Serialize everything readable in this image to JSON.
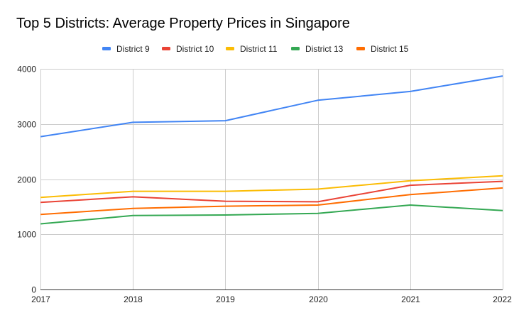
{
  "chart_data": {
    "type": "line",
    "title": "Top 5 Districts: Average Property Prices in Singapore",
    "xlabel": "",
    "ylabel": "",
    "x": [
      "2017",
      "2018",
      "2019",
      "2020",
      "2021",
      "2022"
    ],
    "ylim": [
      0,
      4000
    ],
    "yticks": [
      "0",
      "1000",
      "2000",
      "3000",
      "4000"
    ],
    "ytick_values": [
      0,
      1000,
      2000,
      3000,
      4000
    ],
    "grid": true,
    "legend_position": "top-center",
    "series": [
      {
        "name": "District 9",
        "color": "#4285F4",
        "values": [
          2770,
          3030,
          3060,
          3430,
          3590,
          3870
        ]
      },
      {
        "name": "District 10",
        "color": "#EA4335",
        "values": [
          1580,
          1680,
          1600,
          1590,
          1890,
          1960
        ]
      },
      {
        "name": "District 11",
        "color": "#FBBC04",
        "values": [
          1670,
          1780,
          1780,
          1820,
          1970,
          2060
        ]
      },
      {
        "name": "District 13",
        "color": "#34A853",
        "values": [
          1190,
          1340,
          1350,
          1380,
          1530,
          1430
        ]
      },
      {
        "name": "District 15",
        "color": "#FF6D01",
        "values": [
          1360,
          1470,
          1510,
          1530,
          1720,
          1840
        ]
      }
    ]
  }
}
